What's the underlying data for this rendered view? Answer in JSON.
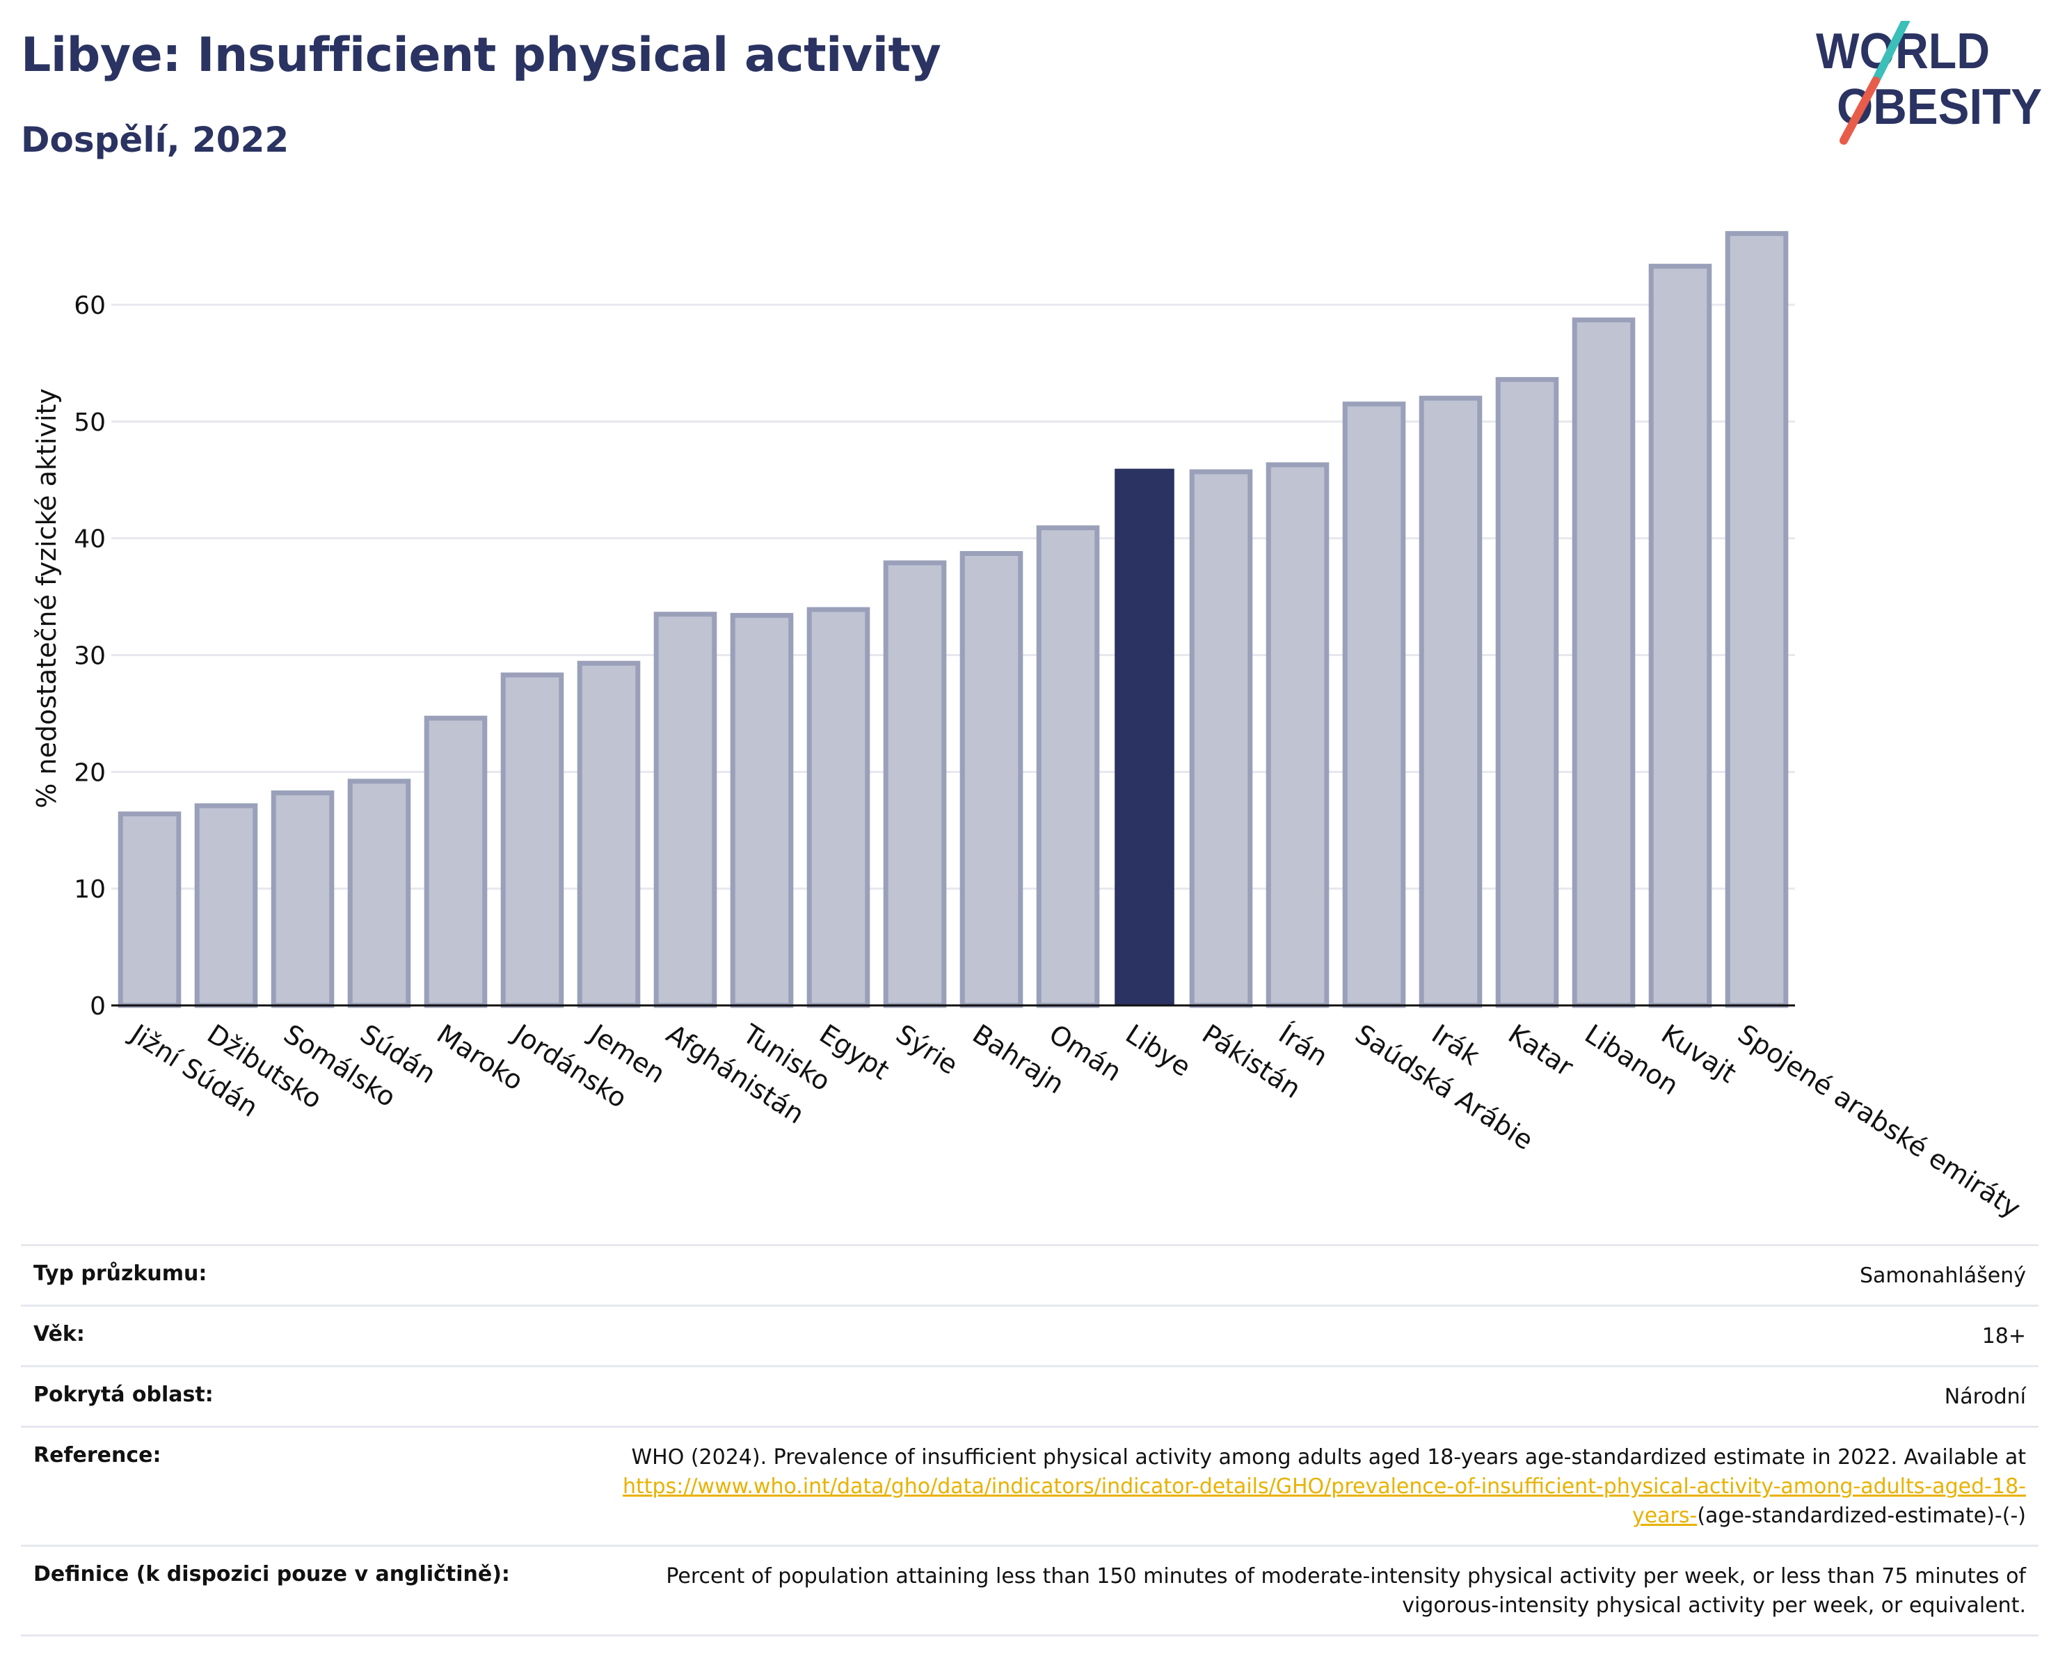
{
  "header": {
    "title": "Libye: Insufficient physical activity",
    "subtitle": "Dospělí, 2022"
  },
  "logo": {
    "line1": "WORLD",
    "line2": "OBESITY",
    "colors": {
      "text": "#2a3361",
      "slash_teal": "#3bbfb8",
      "slash_red": "#e85c4a"
    }
  },
  "colors": {
    "bar": "#bfc3d2",
    "bar_border": "#9aa0b9",
    "highlight": "#2a3361",
    "grid": "#e6e8ee",
    "axis": "#111111"
  },
  "chart_data": {
    "type": "bar",
    "ylabel": "% nedostatečné fyzické aktivity",
    "ylim": [
      0,
      68
    ],
    "yticks": [
      0,
      10,
      20,
      30,
      40,
      50,
      60
    ],
    "grid": true,
    "highlight": "Libye",
    "categories": [
      "Jižní Súdán",
      "Džibutsko",
      "Somálsko",
      "Súdán",
      "Maroko",
      "Jordánsko",
      "Jemen",
      "Afghánistán",
      "Tunisko",
      "Egypt",
      "Sýrie",
      "Bahrajn",
      "Omán",
      "Libye",
      "Pákistán",
      "Írán",
      "Saúdská Arábie",
      "Irák",
      "Katar",
      "Libanon",
      "Kuvajt",
      "Spojené arabské emiráty"
    ],
    "values": [
      16.4,
      17.1,
      18.2,
      19.2,
      24.6,
      28.3,
      29.3,
      33.5,
      33.4,
      33.9,
      37.9,
      38.7,
      40.9,
      45.9,
      45.7,
      46.3,
      51.5,
      52.0,
      53.6,
      58.7,
      63.3,
      66.1
    ]
  },
  "info": {
    "survey_type_label": "Typ průzkumu:",
    "survey_type_value": "Samonahlášený",
    "age_label": "Věk:",
    "age_value": "18+",
    "coverage_label": "Pokrytá oblast:",
    "coverage_value": "Národní",
    "reference_label": "Reference:",
    "reference_text": "WHO (2024). Prevalence of insufficient physical activity among adults aged 18-years age-standardized estimate in 2022. Available at",
    "reference_link": "https://www.who.int/data/gho/data/indicators/indicator-details/GHO/prevalence-of-insufficient-physical-activity-among-adults-aged-18-years-",
    "reference_suffix": "(age-standardized-estimate)-(-)",
    "definition_label": "Definice (k dispozici pouze v angličtině):",
    "definition_value": "Percent of population attaining less than 150 minutes of moderate-intensity physical activity per week, or less than 75 minutes of vigorous-intensity physical activity per week, or equivalent."
  }
}
